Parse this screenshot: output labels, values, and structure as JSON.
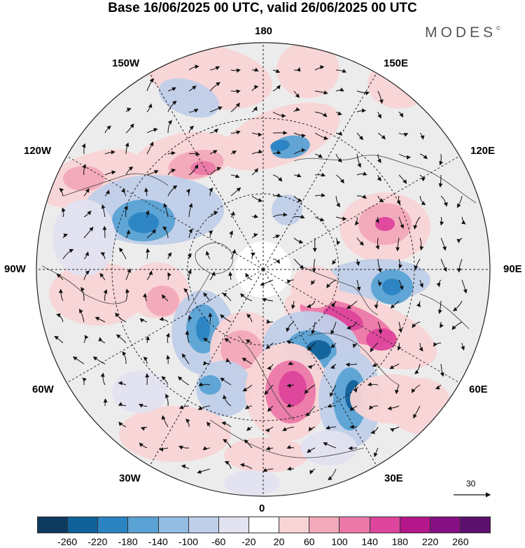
{
  "title": "Base 16/06/2025 00 UTC, valid 26/06/2025 00 UTC",
  "logo": {
    "text": "MODES",
    "mark": "©"
  },
  "map": {
    "projection": "north-polar-stereographic",
    "lon_labels": {
      "top": "180",
      "bottom": "0",
      "left": "90W",
      "right": "90E",
      "upper_left_1": "150W",
      "upper_left_2": "120W",
      "lower_left_1": "60W",
      "lower_left_2": "30W",
      "upper_right_1": "150E",
      "upper_right_2": "120E",
      "lower_right_1": "60E",
      "lower_right_2": "30E"
    },
    "vector_reference": "30"
  },
  "colorbar": {
    "colors": [
      "#0d3a5e",
      "#11619a",
      "#2a84c2",
      "#5aa2d4",
      "#93bde3",
      "#c0cfe9",
      "#e2e2f0",
      "#ffffff",
      "#f9d4d5",
      "#f2a9bb",
      "#ec78a8",
      "#de459c",
      "#b5168a",
      "#860f83",
      "#5c116f"
    ],
    "ticks": [
      "-260",
      "-220",
      "-180",
      "-140",
      "-100",
      "-60",
      "-20",
      "20",
      "60",
      "100",
      "140",
      "180",
      "220",
      "260"
    ]
  }
}
